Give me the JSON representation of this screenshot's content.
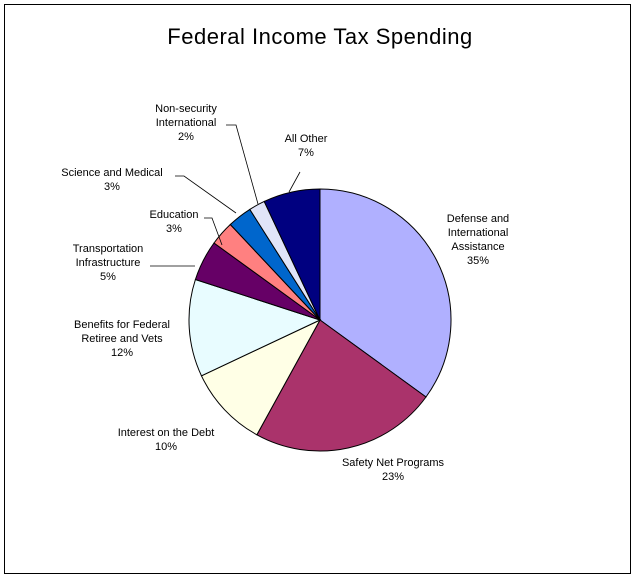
{
  "chart_data": {
    "type": "pie",
    "title": "Federal Income Tax Spending",
    "slices": [
      {
        "label": [
          "Defense and",
          "International",
          "Assistance"
        ],
        "pct_label": "35%",
        "value": 35,
        "color": "#B0B0FF"
      },
      {
        "label": [
          "Safety Net Programs"
        ],
        "pct_label": "23%",
        "value": 23,
        "color": "#AA336B"
      },
      {
        "label": [
          "Interest on the Debt"
        ],
        "pct_label": "10%",
        "value": 10,
        "color": "#FFFFE6"
      },
      {
        "label": [
          "Benefits for Federal",
          "Retiree and Vets"
        ],
        "pct_label": "12%",
        "value": 12,
        "color": "#E8FCFF"
      },
      {
        "label": [
          "Transportation",
          "Infrastructure"
        ],
        "pct_label": "5%",
        "value": 5,
        "color": "#660066"
      },
      {
        "label": [
          "Education"
        ],
        "pct_label": "3%",
        "value": 3,
        "color": "#FF8080"
      },
      {
        "label": [
          "Science and Medical"
        ],
        "pct_label": "3%",
        "value": 3,
        "color": "#0066CC"
      },
      {
        "label": [
          "Non-security",
          "International"
        ],
        "pct_label": "2%",
        "value": 2,
        "color": "#E0E4F8"
      },
      {
        "label": [
          "All Other"
        ],
        "pct_label": "7%",
        "value": 7,
        "color": "#000080"
      }
    ]
  }
}
